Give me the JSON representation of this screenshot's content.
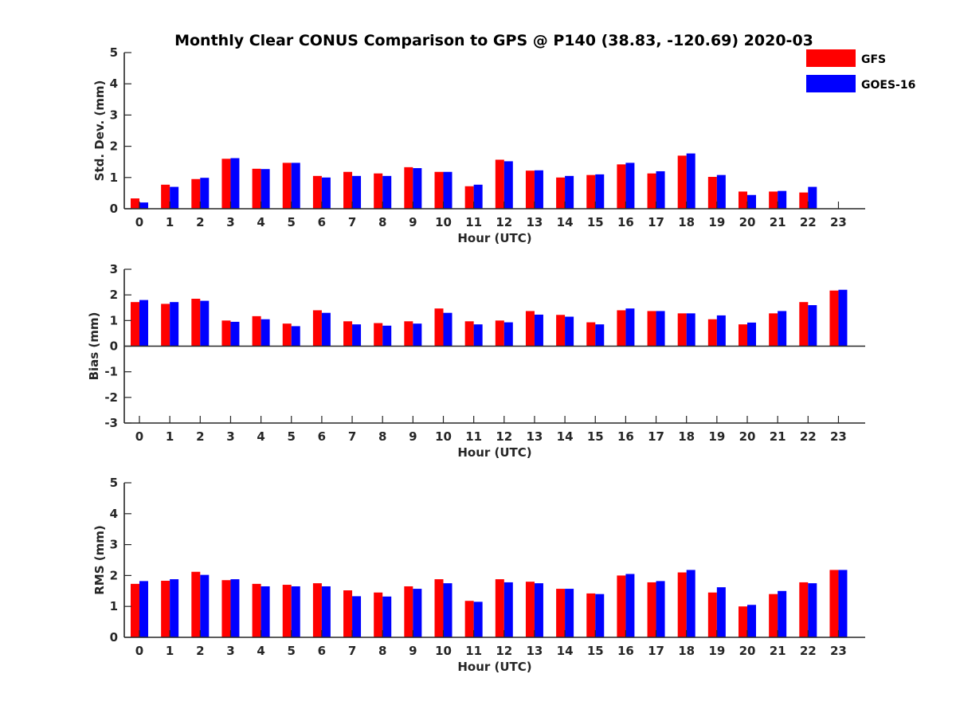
{
  "figure": {
    "title": "Monthly Clear CONUS Comparison to GPS @ P140 (38.83, -120.69) 2020-03"
  },
  "legend": {
    "position": "top-right",
    "entries": [
      {
        "label": "GFS",
        "color": "#ff0000"
      },
      {
        "label": "GOES-16",
        "color": "#0000ff"
      }
    ]
  },
  "chart_data": [
    {
      "type": "bar",
      "title": "Monthly Clear CONUS Comparison to GPS @ P140 (38.83, -120.69) 2020-03",
      "xlabel": "Hour (UTC)",
      "ylabel": "Std. Dev. (mm)",
      "ylim": [
        0,
        5
      ],
      "yticks": [
        "0",
        "1",
        "2",
        "3",
        "4",
        "5"
      ],
      "categories": [
        "0",
        "1",
        "2",
        "3",
        "4",
        "5",
        "6",
        "7",
        "8",
        "9",
        "10",
        "11",
        "12",
        "13",
        "14",
        "15",
        "16",
        "17",
        "18",
        "19",
        "20",
        "21",
        "22",
        "23"
      ],
      "series": [
        {
          "name": "GFS",
          "color": "#ff0000",
          "values": [
            0.33,
            0.77,
            0.95,
            1.6,
            1.28,
            1.47,
            1.05,
            1.18,
            1.13,
            1.33,
            1.18,
            0.72,
            1.57,
            1.22,
            1.0,
            1.08,
            1.42,
            1.13,
            1.7,
            1.02,
            0.55,
            0.55,
            0.52,
            null
          ]
        },
        {
          "name": "GOES-16",
          "color": "#0000ff",
          "values": [
            0.2,
            0.7,
            0.99,
            1.62,
            1.27,
            1.47,
            1.0,
            1.05,
            1.05,
            1.3,
            1.18,
            0.77,
            1.52,
            1.23,
            1.05,
            1.1,
            1.47,
            1.2,
            1.77,
            1.08,
            0.44,
            0.57,
            0.7,
            null
          ]
        }
      ]
    },
    {
      "type": "bar",
      "xlabel": "Hour (UTC)",
      "ylabel": "Bias (mm)",
      "ylim": [
        -3,
        3
      ],
      "yticks": [
        "-3",
        "-2",
        "-1",
        "0",
        "1",
        "2",
        "3"
      ],
      "categories": [
        "0",
        "1",
        "2",
        "3",
        "4",
        "5",
        "6",
        "7",
        "8",
        "9",
        "10",
        "11",
        "12",
        "13",
        "14",
        "15",
        "16",
        "17",
        "18",
        "19",
        "20",
        "21",
        "22",
        "23"
      ],
      "series": [
        {
          "name": "GFS",
          "color": "#ff0000",
          "values": [
            1.72,
            1.65,
            1.85,
            1.0,
            1.17,
            0.88,
            1.4,
            0.97,
            0.9,
            0.97,
            1.47,
            0.97,
            1.0,
            1.37,
            1.22,
            0.93,
            1.4,
            1.37,
            1.28,
            1.05,
            0.85,
            1.28,
            1.72,
            2.17
          ]
        },
        {
          "name": "GOES-16",
          "color": "#0000ff",
          "values": [
            1.8,
            1.72,
            1.77,
            0.95,
            1.05,
            0.78,
            1.3,
            0.85,
            0.8,
            0.88,
            1.3,
            0.85,
            0.93,
            1.23,
            1.15,
            0.85,
            1.47,
            1.37,
            1.28,
            1.2,
            0.92,
            1.37,
            1.6,
            2.2
          ]
        }
      ]
    },
    {
      "type": "bar",
      "xlabel": "Hour (UTC)",
      "ylabel": "RMS (mm)",
      "ylim": [
        0,
        5
      ],
      "yticks": [
        "0",
        "1",
        "2",
        "3",
        "4",
        "5"
      ],
      "categories": [
        "0",
        "1",
        "2",
        "3",
        "4",
        "5",
        "6",
        "7",
        "8",
        "9",
        "10",
        "11",
        "12",
        "13",
        "14",
        "15",
        "16",
        "17",
        "18",
        "19",
        "20",
        "21",
        "22",
        "23"
      ],
      "series": [
        {
          "name": "GFS",
          "color": "#ff0000",
          "values": [
            1.73,
            1.83,
            2.12,
            1.85,
            1.73,
            1.7,
            1.75,
            1.52,
            1.45,
            1.65,
            1.88,
            1.18,
            1.88,
            1.8,
            1.57,
            1.42,
            2.0,
            1.78,
            2.1,
            1.45,
            1.0,
            1.4,
            1.78,
            2.18
          ]
        },
        {
          "name": "GOES-16",
          "color": "#0000ff",
          "values": [
            1.82,
            1.88,
            2.02,
            1.88,
            1.65,
            1.65,
            1.65,
            1.33,
            1.32,
            1.57,
            1.75,
            1.15,
            1.78,
            1.75,
            1.57,
            1.4,
            2.05,
            1.82,
            2.18,
            1.62,
            1.05,
            1.5,
            1.75,
            2.18
          ]
        }
      ]
    }
  ]
}
